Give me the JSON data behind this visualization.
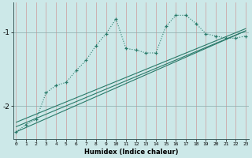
{
  "xlabel": "Humidex (Indice chaleur)",
  "background_color": "#cce8e8",
  "line_color": "#2a7a6a",
  "x_ticks": [
    0,
    1,
    2,
    3,
    4,
    5,
    6,
    7,
    8,
    9,
    10,
    11,
    12,
    13,
    14,
    15,
    16,
    17,
    18,
    19,
    20,
    21,
    22,
    23
  ],
  "ylim": [
    -2.45,
    -0.6
  ],
  "xlim": [
    -0.3,
    23.3
  ],
  "y_ticks": [
    -2,
    -1
  ],
  "series": {
    "main": {
      "x": [
        0,
        1,
        2,
        3,
        4,
        5,
        6,
        7,
        8,
        9,
        10,
        11,
        12,
        13,
        14,
        15,
        16,
        17,
        18,
        19,
        20,
        21,
        22,
        23
      ],
      "y": [
        -2.35,
        -2.25,
        -2.18,
        -1.82,
        -1.72,
        -1.68,
        -1.52,
        -1.38,
        -1.18,
        -1.02,
        -0.82,
        -1.22,
        -1.24,
        -1.28,
        -1.28,
        -0.92,
        -0.77,
        -0.77,
        -0.88,
        -1.02,
        -1.05,
        -1.08,
        -1.08,
        -1.05
      ]
    },
    "line1": {
      "x": [
        0,
        23
      ],
      "y": [
        -2.35,
        -0.98
      ]
    },
    "line2": {
      "x": [
        0,
        23
      ],
      "y": [
        -2.28,
        -0.98
      ]
    },
    "line3": {
      "x": [
        0,
        23
      ],
      "y": [
        -2.22,
        -0.95
      ]
    }
  }
}
